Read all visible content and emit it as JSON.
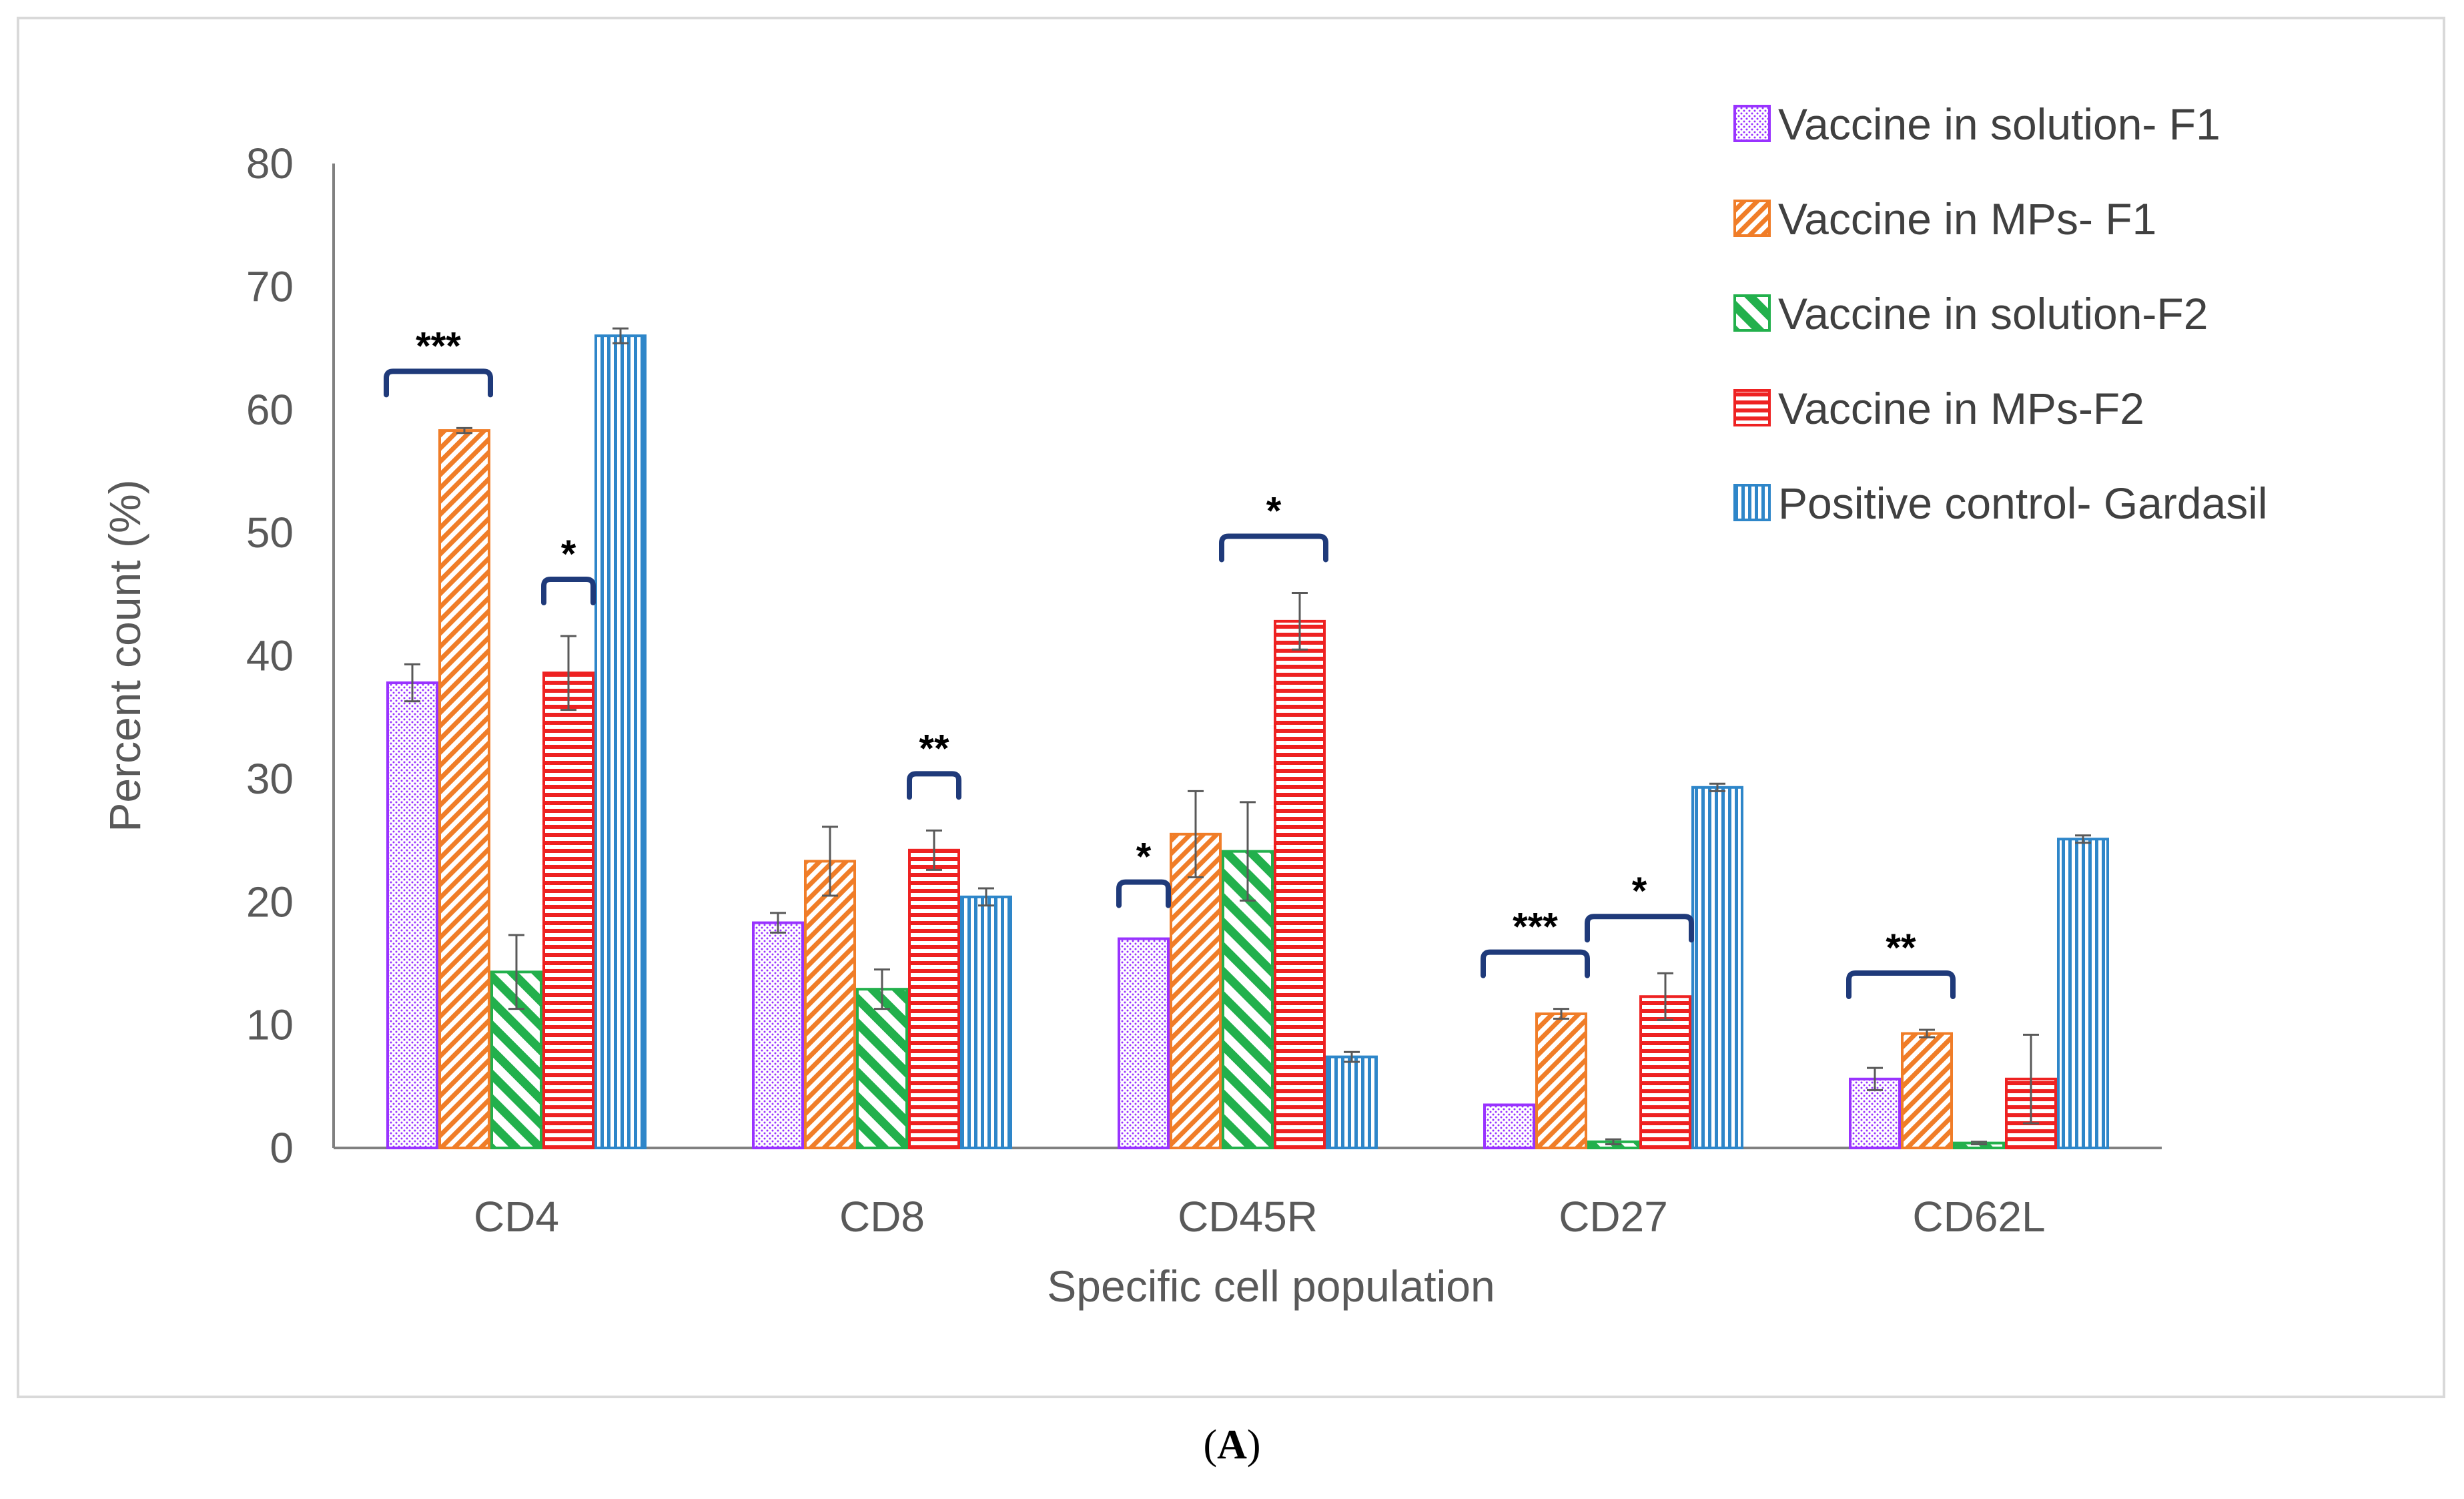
{
  "chart_data": {
    "type": "bar",
    "title": "",
    "xlabel": "Specific cell population",
    "ylabel": "Percent count (%)",
    "ylim": [
      0,
      80
    ],
    "yticks": [
      0,
      10,
      20,
      30,
      40,
      50,
      60,
      70,
      80
    ],
    "grid": false,
    "legend_position": "top-right",
    "categories": [
      "CD4",
      "CD8",
      "CD45R",
      "CD27",
      "CD62L"
    ],
    "series": [
      {
        "name": "Vaccine in solution- F1",
        "values": [
          37.8,
          18.3,
          17.0,
          3.5,
          5.6
        ],
        "errors": [
          1.5,
          0.8,
          0.0,
          0.0,
          0.9
        ],
        "color": "#9933ff",
        "pattern": "dots"
      },
      {
        "name": "Vaccine in MPs- F1",
        "values": [
          58.3,
          23.3,
          25.5,
          10.9,
          9.3
        ],
        "errors": [
          0.2,
          2.8,
          3.5,
          0.4,
          0.3
        ],
        "color": "#f07d28",
        "pattern": "diag-right"
      },
      {
        "name": "Vaccine in solution-F2",
        "values": [
          14.3,
          12.9,
          24.1,
          0.5,
          0.4
        ],
        "errors": [
          3.0,
          1.6,
          4.0,
          0.2,
          0.1
        ],
        "color": "#22b04c",
        "pattern": "diag-left"
      },
      {
        "name": "Vaccine in MPs-F2",
        "values": [
          38.6,
          24.2,
          42.8,
          12.3,
          5.6
        ],
        "errors": [
          3.0,
          1.6,
          2.3,
          1.9,
          3.6
        ],
        "color": "#ee2222",
        "pattern": "horizontal"
      },
      {
        "name": "Positive control- Gardasil",
        "values": [
          66.0,
          20.4,
          7.4,
          29.3,
          25.1
        ],
        "errors": [
          0.6,
          0.7,
          0.4,
          0.3,
          0.3
        ],
        "color": "#2e86c9",
        "pattern": "vertical"
      }
    ],
    "significance": [
      {
        "category": "CD4",
        "from_series": 0,
        "to_series": 1,
        "label": "***"
      },
      {
        "category": "CD4",
        "from_series": 3,
        "to_series": 3,
        "label": "*"
      },
      {
        "category": "CD8",
        "from_series": 3,
        "to_series": 3,
        "label": "**"
      },
      {
        "category": "CD45R",
        "from_series": 0,
        "to_series": 0,
        "label": "*"
      },
      {
        "category": "CD45R",
        "from_series": 2,
        "to_series": 3,
        "label": "*"
      },
      {
        "category": "CD27",
        "from_series": 0,
        "to_series": 1,
        "label": "***"
      },
      {
        "category": "CD27",
        "from_series": 2,
        "to_series": 3,
        "label": "*"
      },
      {
        "category": "CD62L",
        "from_series": 0,
        "to_series": 1,
        "label": "**"
      }
    ],
    "bracket_color": "#1f3a7a"
  },
  "caption": {
    "open": "(",
    "letter": "A",
    "close": ")"
  }
}
